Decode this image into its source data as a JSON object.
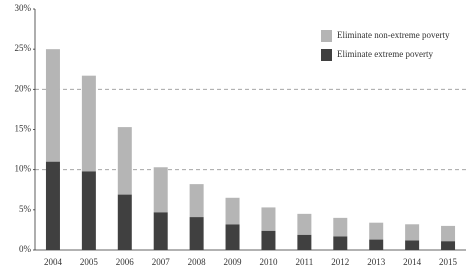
{
  "chart_data": {
    "type": "stacked-bar",
    "categories": [
      "2004",
      "2005",
      "2006",
      "2007",
      "2008",
      "2009",
      "2010",
      "2011",
      "2012",
      "2013",
      "2014",
      "2015"
    ],
    "series": [
      {
        "name": "Eliminate extreme poverty",
        "color": "#404040",
        "values": [
          11,
          9.8,
          6.9,
          4.7,
          4.1,
          3.2,
          2.4,
          1.9,
          1.7,
          1.3,
          1.2,
          1.1
        ]
      },
      {
        "name": "Eliminate non-extreme poverty",
        "color": "#b5b5b5",
        "values": [
          14,
          11.9,
          8.4,
          5.6,
          4.1,
          3.3,
          2.9,
          2.6,
          2.3,
          2.1,
          2.0,
          1.9
        ]
      }
    ],
    "ylim": [
      0,
      30
    ],
    "yticks": [
      {
        "value": 0,
        "label": "0%"
      },
      {
        "value": 5,
        "label": "5%"
      },
      {
        "value": 10,
        "label": "10%"
      },
      {
        "value": 15,
        "label": "15%"
      },
      {
        "value": 20,
        "label": "20%"
      },
      {
        "value": 25,
        "label": "25%"
      },
      {
        "value": 30,
        "label": "30%"
      }
    ],
    "gridlines": [
      10,
      20
    ],
    "legend": "top-right"
  }
}
